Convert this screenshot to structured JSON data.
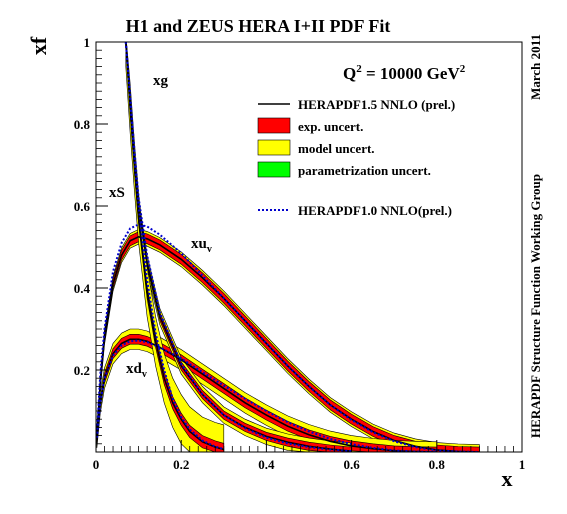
{
  "chart_data": {
    "type": "line",
    "title": "H1 and ZEUS HERA I+II PDF Fit",
    "scale_label": {
      "prefix": "Q",
      "exp": "2",
      "mid": " = 10000 GeV",
      "exp2": "2"
    },
    "xlabel": "x",
    "ylabel": "xf",
    "side_label_top": "March 2011",
    "side_label_bottom": "HERAPDF Structure Function Working Group",
    "xlim": [
      0,
      1
    ],
    "ylim": [
      0,
      1
    ],
    "x_ticks": [
      "0",
      "0.2",
      "0.4",
      "0.6",
      "0.8",
      "1"
    ],
    "y_ticks": [
      "0.2",
      "0.4",
      "0.6",
      "0.8",
      "1"
    ],
    "x_tick_values": [
      0,
      0.2,
      0.4,
      0.6,
      0.8,
      1
    ],
    "y_tick_values": [
      0.2,
      0.4,
      0.6,
      0.8,
      1
    ],
    "legend_position": "top-right",
    "legend": [
      {
        "label": "HERAPDF1.5 NNLO (prel.)",
        "kind": "line",
        "color": "#000000"
      },
      {
        "label": "exp. uncert.",
        "kind": "box",
        "color": "#ff0000"
      },
      {
        "label": "model uncert.",
        "kind": "box",
        "color": "#ffff00"
      },
      {
        "label": "parametrization uncert.",
        "kind": "box",
        "color": "#00ff00"
      },
      {
        "label": "HERAPDF1.0 NNLO(prel.)",
        "kind": "dotted",
        "color": "#0000cc"
      }
    ],
    "curve_labels": [
      {
        "text": "xg",
        "sub": ""
      },
      {
        "text": "xS",
        "sub": ""
      },
      {
        "text": "xu",
        "sub": "v"
      },
      {
        "text": "xd",
        "sub": "v"
      }
    ],
    "series": [
      {
        "name": "xu",
        "x": [
          0.002,
          0.01,
          0.02,
          0.04,
          0.06,
          0.08,
          0.1,
          0.12,
          0.15,
          0.2,
          0.25,
          0.3,
          0.35,
          0.4,
          0.45,
          0.5,
          0.55,
          0.6,
          0.65,
          0.7,
          0.75,
          0.8,
          0.85,
          0.9
        ],
        "y": [
          0.04,
          0.17,
          0.28,
          0.41,
          0.48,
          0.515,
          0.525,
          0.52,
          0.505,
          0.47,
          0.425,
          0.375,
          0.32,
          0.265,
          0.21,
          0.16,
          0.115,
          0.08,
          0.05,
          0.028,
          0.014,
          0.005,
          0.0015,
          0.0
        ],
        "exp_band": 0.012,
        "model_band": 0.018,
        "ref_y": [
          0.045,
          0.19,
          0.3,
          0.44,
          0.51,
          0.545,
          0.555,
          0.55,
          0.53,
          0.485,
          0.43,
          0.375,
          0.32,
          0.265,
          0.21,
          0.16,
          0.115,
          0.078,
          0.048,
          0.026,
          0.012,
          0.004,
          0.001,
          0.0
        ]
      },
      {
        "name": "xd",
        "x": [
          0.002,
          0.01,
          0.02,
          0.04,
          0.06,
          0.08,
          0.1,
          0.12,
          0.15,
          0.2,
          0.25,
          0.3,
          0.35,
          0.4,
          0.45,
          0.5,
          0.55,
          0.6,
          0.65,
          0.7,
          0.75,
          0.8
        ],
        "y": [
          0.035,
          0.12,
          0.18,
          0.24,
          0.265,
          0.275,
          0.275,
          0.27,
          0.255,
          0.225,
          0.19,
          0.155,
          0.12,
          0.09,
          0.063,
          0.042,
          0.026,
          0.015,
          0.008,
          0.003,
          0.001,
          0.0
        ],
        "exp_band": 0.012,
        "model_band": 0.025,
        "ref_y": [
          0.035,
          0.12,
          0.18,
          0.235,
          0.26,
          0.27,
          0.272,
          0.268,
          0.255,
          0.228,
          0.195,
          0.162,
          0.13,
          0.1,
          0.073,
          0.05,
          0.032,
          0.019,
          0.01,
          0.004,
          0.001,
          0.0
        ]
      },
      {
        "name": "xS",
        "x": [
          0.07,
          0.08,
          0.09,
          0.1,
          0.12,
          0.15,
          0.2,
          0.25,
          0.3,
          0.35,
          0.4,
          0.45,
          0.5,
          0.55,
          0.6
        ],
        "y": [
          1.0,
          0.86,
          0.72,
          0.6,
          0.46,
          0.33,
          0.21,
          0.14,
          0.09,
          0.06,
          0.038,
          0.024,
          0.014,
          0.007,
          0.002
        ],
        "exp_band": 0.01,
        "model_band": 0.02,
        "ref_y": [
          1.0,
          0.87,
          0.74,
          0.62,
          0.48,
          0.34,
          0.215,
          0.14,
          0.09,
          0.058,
          0.035,
          0.021,
          0.012,
          0.006,
          0.002
        ]
      },
      {
        "name": "xg",
        "x": [
          0.07,
          0.08,
          0.09,
          0.1,
          0.12,
          0.14,
          0.16,
          0.18,
          0.2,
          0.22,
          0.25,
          0.28,
          0.3
        ],
        "y": [
          1.0,
          0.84,
          0.7,
          0.57,
          0.39,
          0.27,
          0.18,
          0.12,
          0.08,
          0.05,
          0.025,
          0.012,
          0.006
        ],
        "exp_band": 0.015,
        "model_band": 0.06,
        "ref_y": [
          1.0,
          0.86,
          0.72,
          0.6,
          0.42,
          0.29,
          0.2,
          0.13,
          0.085,
          0.055,
          0.028,
          0.013,
          0.007
        ]
      }
    ]
  }
}
